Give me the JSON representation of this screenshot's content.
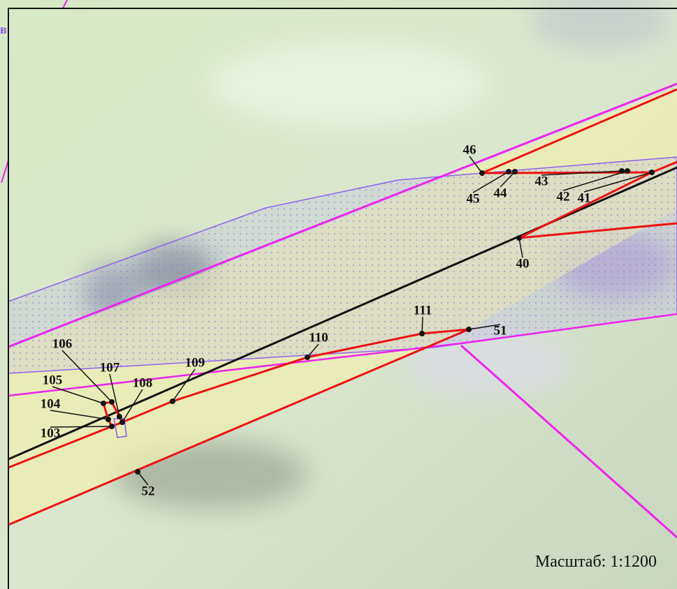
{
  "map": {
    "edge_label": "в",
    "scale_label": "Масштаб: 1:1200",
    "points": [
      {
        "label": "46"
      },
      {
        "label": "45"
      },
      {
        "label": "44"
      },
      {
        "label": "43"
      },
      {
        "label": "42"
      },
      {
        "label": "41"
      },
      {
        "label": "40"
      },
      {
        "label": "51"
      },
      {
        "label": "111"
      },
      {
        "label": "110"
      },
      {
        "label": "109"
      },
      {
        "label": "108"
      },
      {
        "label": "107"
      },
      {
        "label": "106"
      },
      {
        "label": "105"
      },
      {
        "label": "104"
      },
      {
        "label": "103"
      },
      {
        "label": "52"
      }
    ]
  }
}
